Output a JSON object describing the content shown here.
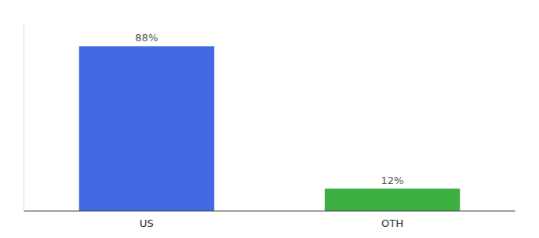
{
  "chart_data": {
    "type": "bar",
    "categories": [
      "US",
      "OTH"
    ],
    "values": [
      88,
      12
    ],
    "value_labels": [
      "88%",
      "12%"
    ],
    "colors": [
      "#4169e1",
      "#3cb043"
    ],
    "ylim": [
      0,
      100
    ],
    "grid": false,
    "data_labels": true,
    "tick_labels": "x"
  }
}
